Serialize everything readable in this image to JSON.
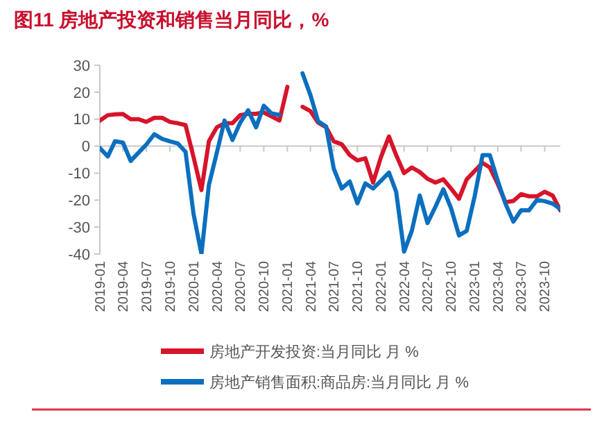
{
  "chart_data": {
    "type": "line",
    "title": "图11  房地产投资和销售当月同比，%",
    "x": [
      "2019-01",
      "2019-02",
      "2019-03",
      "2019-04",
      "2019-05",
      "2019-06",
      "2019-07",
      "2019-08",
      "2019-09",
      "2019-10",
      "2019-11",
      "2019-12",
      "2020-01",
      "2020-02",
      "2020-03",
      "2020-04",
      "2020-05",
      "2020-06",
      "2020-07",
      "2020-08",
      "2020-09",
      "2020-10",
      "2020-11",
      "2020-12",
      "2021-01",
      "2021-02",
      "2021-03",
      "2021-04",
      "2021-05",
      "2021-06",
      "2021-07",
      "2021-08",
      "2021-09",
      "2021-10",
      "2021-11",
      "2021-12",
      "2022-01",
      "2022-02",
      "2022-03",
      "2022-04",
      "2022-05",
      "2022-06",
      "2022-07",
      "2022-08",
      "2022-09",
      "2022-10",
      "2022-11",
      "2022-12",
      "2023-01",
      "2023-02",
      "2023-03",
      "2023-04",
      "2023-05",
      "2023-06",
      "2023-07",
      "2023-08",
      "2023-09",
      "2023-10",
      "2023-11",
      "2023-12"
    ],
    "series": [
      {
        "name": "房地产开发投资:当月同比 月 %",
        "color": "#d7142a",
        "values": [
          9.5,
          11.5,
          11.8,
          11.9,
          10,
          10,
          9,
          10.5,
          10.5,
          9,
          8.5,
          7.8,
          -4,
          -16.3,
          1.8,
          7,
          8.5,
          8.5,
          11.5,
          12,
          12,
          12.5,
          11,
          9.5,
          22,
          null,
          14.6,
          13,
          8.7,
          7,
          1.8,
          0.7,
          -3.3,
          -5.3,
          -4.5,
          -13.5,
          -4,
          3.6,
          -3.3,
          -10,
          -7.9,
          -9.6,
          -12.1,
          -13.5,
          -12.3,
          -15.7,
          -19.5,
          -12.3,
          -9.2,
          -6.2,
          -7.9,
          -14,
          -20.8,
          -20.3,
          -17.8,
          -18.6,
          -18.6,
          -16.9,
          -18.3,
          -23.8
        ]
      },
      {
        "name": "房地产销售面积:商品房:当月同比 月 %",
        "color": "#0b6fbf",
        "values": [
          -0.7,
          -3.8,
          1.8,
          1.3,
          -5.5,
          -2.4,
          0.6,
          4.4,
          2.7,
          1.8,
          1,
          -2.1,
          -25,
          -40,
          -14.4,
          -2.4,
          9.5,
          2.3,
          8.7,
          13.3,
          7,
          15,
          12.1,
          11.6,
          null,
          null,
          27,
          18.9,
          9.2,
          7.3,
          -8.4,
          -15.7,
          -13.1,
          -21.2,
          -13.8,
          -15.7,
          -12.8,
          -9.8,
          -16.9,
          -39.1,
          -31.4,
          -18.3,
          -28.5,
          -22.5,
          -16,
          -23,
          -33.1,
          -31.4,
          -18.6,
          -3.3,
          -3.3,
          -12.8,
          -21.3,
          -28,
          -23.8,
          -23.8,
          -19.9,
          -20.4,
          -21.3,
          -23.3
        ]
      }
    ],
    "xlim": [
      "2019-01",
      "2023-12"
    ],
    "xticks": [
      "2019-01",
      "2019-04",
      "2019-07",
      "2019-10",
      "2020-01",
      "2020-04",
      "2020-07",
      "2020-10",
      "2021-01",
      "2021-04",
      "2021-07",
      "2021-10",
      "2022-01",
      "2022-04",
      "2022-07",
      "2022-10",
      "2023-01",
      "2023-04",
      "2023-07",
      "2023-10"
    ],
    "ylim": [
      -40,
      30
    ],
    "yticks": [
      -40,
      -30,
      -20,
      -10,
      0,
      10,
      20,
      30
    ],
    "legend": "bottom",
    "marker": "none",
    "line_style": "solid"
  }
}
